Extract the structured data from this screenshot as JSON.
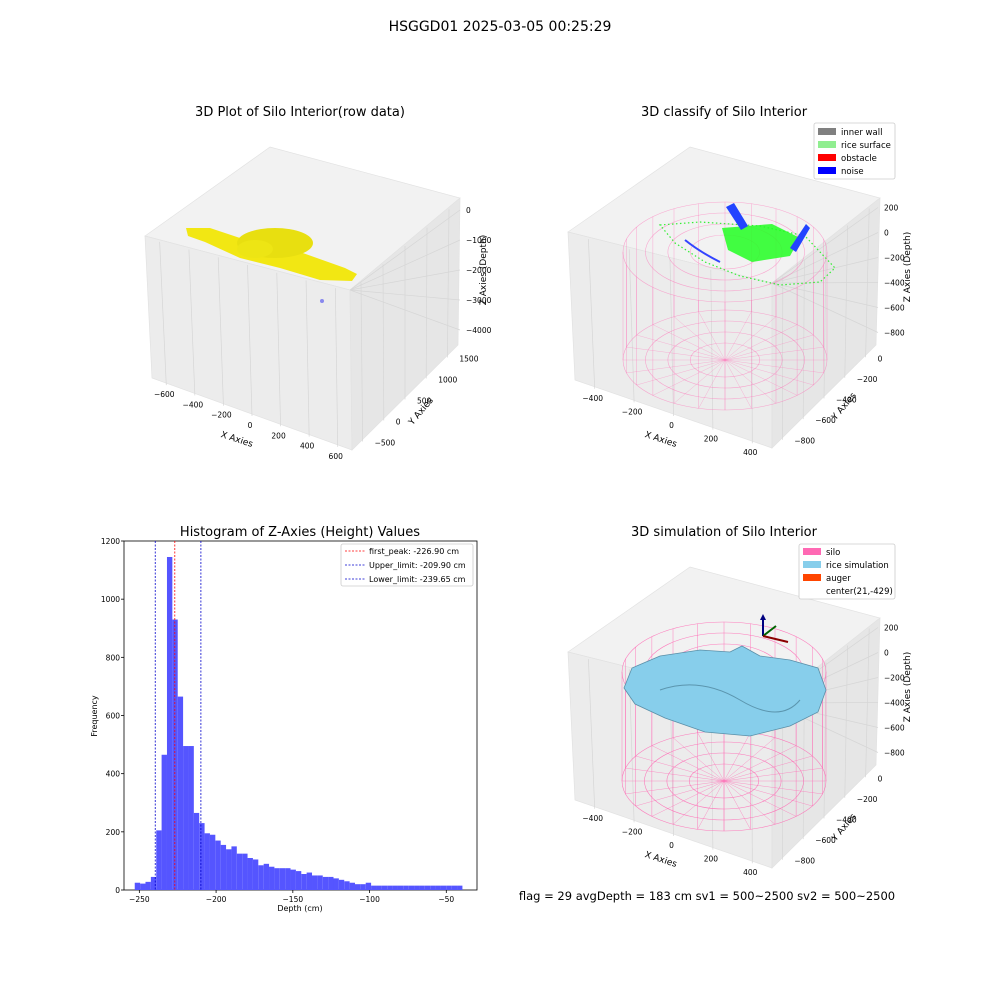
{
  "figure": {
    "suptitle": "HSGGD01 2025-03-05 00:25:29",
    "status_line": "flag = 29  avgDepth = 183 cm  sv1 = 500~2500  sv2 = 500~2500"
  },
  "colors": {
    "raw_points": "#f2e600",
    "inner_wall": "#808080",
    "rice_surface": "#90ee90",
    "obstacle": "#ff0000",
    "noise": "#0000ff",
    "silo": "#ff69b4",
    "rice_simulation": "#87ceeb",
    "auger": "#ff4500",
    "histogram_bar": "#5555ff",
    "peak_line": "#ff0000",
    "limit_line": "#0000cc"
  },
  "chart_data": [
    {
      "type": "scatter",
      "title": "3D Plot of Silo Interior(row data)",
      "xlabel": "X Axies",
      "ylabel": "Y Axies",
      "zlabel": "Z Axies (Depth)",
      "xticks": [
        "−600",
        "−400",
        "−200",
        "0",
        "200",
        "400",
        "600"
      ],
      "yticks": [
        "−500",
        "0",
        "500",
        "1000",
        "1500"
      ],
      "zticks": [
        "−4000",
        "−3000",
        "−2000",
        "−1000",
        "0"
      ],
      "xlim": [
        -650,
        650
      ],
      "ylim": [
        -600,
        1600
      ],
      "zlim": [
        -4300,
        200
      ],
      "grid": true
    },
    {
      "type": "scatter",
      "title": "3D classify of Silo Interior",
      "xlabel": "X Axies",
      "ylabel": "Y Axies",
      "zlabel": "Z Axies (Depth)",
      "xticks": [
        "−400",
        "−200",
        "0",
        "200",
        "400"
      ],
      "yticks": [
        "−800",
        "−600",
        "−400",
        "−200",
        "0"
      ],
      "zticks": [
        "−800",
        "−600",
        "−400",
        "−200",
        "0",
        "200"
      ],
      "legend": [
        "inner wall",
        "rice surface",
        "obstacle",
        "noise"
      ],
      "legend_position": "top-right",
      "xlim": [
        -500,
        500
      ],
      "ylim": [
        -900,
        100
      ],
      "zlim": [
        -900,
        250
      ],
      "grid": true
    },
    {
      "type": "bar",
      "title": "Histogram of Z-Axies (Height) Values",
      "xlabel": "Depth (cm)",
      "ylabel": "Frequency",
      "xlim": [
        -260,
        -30
      ],
      "ylim": [
        0,
        1200
      ],
      "xticks": [
        -250,
        -200,
        -150,
        -100,
        -50
      ],
      "xtick_labels": [
        "−250",
        "−200",
        "−150",
        "−100",
        "−50"
      ],
      "yticks": [
        0,
        200,
        400,
        600,
        800,
        1000,
        1200
      ],
      "bin_edges": [
        -253,
        -249.5,
        -246,
        -242.5,
        -239,
        -235.5,
        -232,
        -228.5,
        -225,
        -221.5,
        -218,
        -214.5,
        -211,
        -207.5,
        -204,
        -200.5,
        -197,
        -193.5,
        -190,
        -186.5,
        -183,
        -179.5,
        -176,
        -172.5,
        -169,
        -165.5,
        -162,
        -158.5,
        -155,
        -151.5,
        -148,
        -144.5,
        -141,
        -137.5,
        -134,
        -130.5,
        -127,
        -123.5,
        -120,
        -116.5,
        -113,
        -109.5,
        -106,
        -102.5,
        -99,
        -95.5,
        -92,
        -88.5,
        -85,
        -81.5,
        -78,
        -74.5,
        -71,
        -67.5,
        -64,
        -60.5,
        -57,
        -53.5,
        -50,
        -46.5,
        -43,
        -39.5
      ],
      "values": [
        25,
        22,
        28,
        45,
        205,
        465,
        1145,
        930,
        665,
        495,
        495,
        265,
        230,
        195,
        190,
        170,
        155,
        140,
        150,
        125,
        125,
        110,
        105,
        85,
        90,
        80,
        75,
        75,
        75,
        70,
        65,
        55,
        60,
        50,
        50,
        45,
        45,
        40,
        35,
        30,
        25,
        20,
        20,
        25,
        15,
        15,
        15,
        15,
        15,
        15,
        15,
        15,
        15,
        15,
        15,
        15,
        15,
        15,
        15,
        15,
        15
      ],
      "vlines": [
        {
          "label": "first_peak: -226.90 cm",
          "x": -226.9,
          "color": "#ff0000"
        },
        {
          "label": "Upper_limit: -209.90 cm",
          "x": -209.9,
          "color": "#0000cc"
        },
        {
          "label": "Lower_limit: -239.65 cm",
          "x": -239.65,
          "color": "#0000cc"
        }
      ],
      "legend_position": "top-right",
      "grid": false
    },
    {
      "type": "area",
      "title": "3D simulation of Silo Interior",
      "xlabel": "X Axies",
      "ylabel": "Y Axies",
      "zlabel": "Z Axies (Depth)",
      "xticks": [
        "−400",
        "−200",
        "0",
        "200",
        "400"
      ],
      "yticks": [
        "−800",
        "−600",
        "−400",
        "−200",
        "0"
      ],
      "zticks": [
        "−800",
        "−600",
        "−400",
        "−200",
        "0",
        "200"
      ],
      "legend": [
        "silo",
        "rice simulation",
        "auger",
        "center(21,-429)"
      ],
      "legend_position": "top-right",
      "xlim": [
        -500,
        500
      ],
      "ylim": [
        -900,
        100
      ],
      "zlim": [
        -900,
        250
      ],
      "grid": true
    }
  ]
}
